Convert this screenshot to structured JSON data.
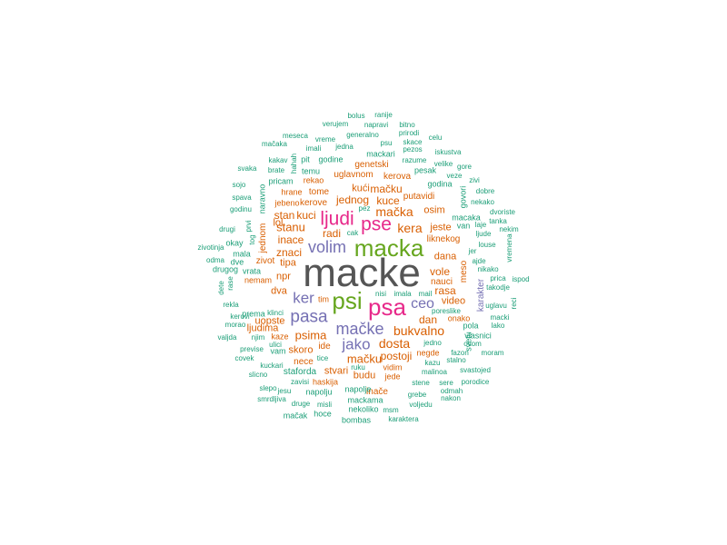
{
  "palette": {
    "a": "#555555",
    "b": "#e7298a",
    "c": "#66a61e",
    "d": "#7570b3",
    "e": "#d95f02",
    "f": "#1b9e77"
  },
  "words": [
    {
      "t": "macke",
      "g": "a"
    },
    {
      "t": "psa",
      "g": "b"
    },
    {
      "t": "psi",
      "g": "c"
    },
    {
      "t": "macka",
      "g": "c"
    },
    {
      "t": "pse",
      "g": "b"
    },
    {
      "t": "ljudi",
      "g": "b"
    },
    {
      "t": "pasa",
      "g": "d"
    },
    {
      "t": "volim",
      "g": "d"
    },
    {
      "t": "mačke",
      "g": "d"
    },
    {
      "t": "jako",
      "g": "d"
    },
    {
      "t": "ker",
      "g": "d"
    },
    {
      "t": "ceo",
      "g": "d"
    },
    {
      "t": "bukvalno",
      "g": "e"
    },
    {
      "t": "dosta",
      "g": "e"
    },
    {
      "t": "mačka",
      "g": "e"
    },
    {
      "t": "kera",
      "g": "e"
    },
    {
      "t": "stanu",
      "g": "e"
    },
    {
      "t": "psima",
      "g": "e"
    },
    {
      "t": "mačku",
      "g": "e"
    },
    {
      "t": "kuce",
      "g": "e"
    },
    {
      "t": "mačku",
      "g": "e"
    },
    {
      "t": "jednog",
      "g": "e"
    },
    {
      "t": "kući",
      "g": "e"
    },
    {
      "t": "stan",
      "g": "e"
    },
    {
      "t": "kuci",
      "g": "e"
    },
    {
      "t": "radi",
      "g": "e"
    },
    {
      "t": "inace",
      "g": "e"
    },
    {
      "t": "znaci",
      "g": "e"
    },
    {
      "t": "vole",
      "g": "e"
    },
    {
      "t": "rasa",
      "g": "e"
    },
    {
      "t": "dana",
      "g": "e"
    },
    {
      "t": "dan",
      "g": "e"
    },
    {
      "t": "postoji",
      "g": "e"
    },
    {
      "t": "macku",
      "g": "e"
    },
    {
      "t": "uopste",
      "g": "e"
    },
    {
      "t": "ljudima",
      "g": "e"
    },
    {
      "t": "stvari",
      "g": "e"
    },
    {
      "t": "skoro",
      "g": "e"
    },
    {
      "t": "budu",
      "g": "e"
    },
    {
      "t": "jeste",
      "g": "e"
    },
    {
      "t": "osim",
      "g": "e"
    },
    {
      "t": "liknekog",
      "g": "e"
    },
    {
      "t": "video",
      "g": "e"
    },
    {
      "t": "nauci",
      "g": "e"
    },
    {
      "t": "lol",
      "g": "e"
    },
    {
      "t": "npr",
      "g": "e"
    },
    {
      "t": "dva",
      "g": "e"
    },
    {
      "t": "tipa",
      "g": "e"
    },
    {
      "t": "zivot",
      "g": "e"
    },
    {
      "t": "tome",
      "g": "e"
    },
    {
      "t": "kerove",
      "g": "e"
    },
    {
      "t": "uglavnom",
      "g": "e"
    },
    {
      "t": "genetski",
      "g": "e"
    },
    {
      "t": "kerova",
      "g": "e"
    },
    {
      "t": "putavidi",
      "g": "e"
    },
    {
      "t": "rekao",
      "g": "e"
    },
    {
      "t": "hrane",
      "g": "e"
    },
    {
      "t": "jebeno",
      "g": "e"
    },
    {
      "t": "nemam",
      "g": "e"
    },
    {
      "t": "ide",
      "g": "e"
    },
    {
      "t": "nece",
      "g": "e"
    },
    {
      "t": "staforda",
      "g": "f"
    },
    {
      "t": "haskija",
      "g": "e"
    },
    {
      "t": "inače",
      "g": "e"
    },
    {
      "t": "jede",
      "g": "e"
    },
    {
      "t": "vidim",
      "g": "e"
    },
    {
      "t": "negde",
      "g": "e"
    },
    {
      "t": "onako",
      "g": "e"
    },
    {
      "t": "pola",
      "g": "f"
    },
    {
      "t": "vlasnici",
      "g": "f"
    },
    {
      "t": "kaze",
      "g": "e"
    },
    {
      "t": "vam",
      "g": "f"
    },
    {
      "t": "ulici",
      "g": "f"
    },
    {
      "t": "tim",
      "g": "e"
    },
    {
      "t": "prema",
      "g": "f"
    },
    {
      "t": "mala",
      "g": "f"
    },
    {
      "t": "okay",
      "g": "f"
    },
    {
      "t": "dve",
      "g": "f"
    },
    {
      "t": "vrata",
      "g": "f"
    },
    {
      "t": "drugog",
      "g": "f"
    },
    {
      "t": "pricam",
      "g": "f"
    },
    {
      "t": "temu",
      "g": "f"
    },
    {
      "t": "pit",
      "g": "f"
    },
    {
      "t": "godine",
      "g": "f"
    },
    {
      "t": "mackari",
      "g": "f"
    },
    {
      "t": "pesak",
      "g": "f"
    },
    {
      "t": "godina",
      "g": "f"
    },
    {
      "t": "razume",
      "g": "f"
    },
    {
      "t": "veze",
      "g": "f"
    },
    {
      "t": "gore",
      "g": "f"
    },
    {
      "t": "zivi",
      "g": "f"
    },
    {
      "t": "dobre",
      "g": "f"
    },
    {
      "t": "nekako",
      "g": "f"
    },
    {
      "t": "dvoriste",
      "g": "f"
    },
    {
      "t": "tanka",
      "g": "f"
    },
    {
      "t": "nekim",
      "g": "f"
    },
    {
      "t": "macaka",
      "g": "f"
    },
    {
      "t": "van",
      "g": "f"
    },
    {
      "t": "laje",
      "g": "f"
    },
    {
      "t": "ljude",
      "g": "f"
    },
    {
      "t": "louse",
      "g": "f"
    },
    {
      "t": "jer",
      "g": "f"
    },
    {
      "t": "ajde",
      "g": "f"
    },
    {
      "t": "nikako",
      "g": "f"
    },
    {
      "t": "prica",
      "g": "f"
    },
    {
      "t": "ispod",
      "g": "f"
    },
    {
      "t": "takodje",
      "g": "f"
    },
    {
      "t": "uglavu",
      "g": "f"
    },
    {
      "t": "macki",
      "g": "f"
    },
    {
      "t": "lako",
      "g": "f"
    },
    {
      "t": "moram",
      "g": "f"
    },
    {
      "t": "stalno",
      "g": "f"
    },
    {
      "t": "svastojed",
      "g": "f"
    },
    {
      "t": "porodice",
      "g": "f"
    },
    {
      "t": "sere",
      "g": "f"
    },
    {
      "t": "odmah",
      "g": "f"
    },
    {
      "t": "nakon",
      "g": "f"
    },
    {
      "t": "voljedu",
      "g": "f"
    },
    {
      "t": "grebe",
      "g": "f"
    },
    {
      "t": "stene",
      "g": "f"
    },
    {
      "t": "malinoa",
      "g": "f"
    },
    {
      "t": "kazu",
      "g": "f"
    },
    {
      "t": "fazon",
      "g": "f"
    },
    {
      "t": "jedno",
      "g": "f"
    },
    {
      "t": "ovom",
      "g": "f"
    },
    {
      "t": "poreslike",
      "g": "f"
    },
    {
      "t": "nisi",
      "g": "f"
    },
    {
      "t": "imala",
      "g": "f"
    },
    {
      "t": "mail",
      "g": "f"
    },
    {
      "t": "ruku",
      "g": "f"
    },
    {
      "t": "napolje",
      "g": "f"
    },
    {
      "t": "mackama",
      "g": "f"
    },
    {
      "t": "nekoliko",
      "g": "f"
    },
    {
      "t": "msm",
      "g": "f"
    },
    {
      "t": "karaktera",
      "g": "f"
    },
    {
      "t": "bombas",
      "g": "f"
    },
    {
      "t": "misli",
      "g": "f"
    },
    {
      "t": "hoce",
      "g": "f"
    },
    {
      "t": "mačak",
      "g": "f"
    },
    {
      "t": "druge",
      "g": "f"
    },
    {
      "t": "zavisi",
      "g": "f"
    },
    {
      "t": "napolju",
      "g": "f"
    },
    {
      "t": "jesu",
      "g": "f"
    },
    {
      "t": "tice",
      "g": "f"
    },
    {
      "t": "smrdljiva",
      "g": "f"
    },
    {
      "t": "slepo",
      "g": "f"
    },
    {
      "t": "slicno",
      "g": "f"
    },
    {
      "t": "kuckari",
      "g": "f"
    },
    {
      "t": "covek",
      "g": "f"
    },
    {
      "t": "previse",
      "g": "f"
    },
    {
      "t": "njim",
      "g": "f"
    },
    {
      "t": "valjda",
      "g": "f"
    },
    {
      "t": "morao",
      "g": "f"
    },
    {
      "t": "kerovi",
      "g": "f"
    },
    {
      "t": "klinci",
      "g": "f"
    },
    {
      "t": "rekla",
      "g": "f"
    },
    {
      "t": "dete",
      "g": "f"
    },
    {
      "t": "rase",
      "g": "f"
    },
    {
      "t": "odma",
      "g": "f"
    },
    {
      "t": "zivotinja",
      "g": "f"
    },
    {
      "t": "drugi",
      "g": "f"
    },
    {
      "t": "godinu",
      "g": "f"
    },
    {
      "t": "spava",
      "g": "f"
    },
    {
      "t": "sojo",
      "g": "f"
    },
    {
      "t": "svaka",
      "g": "f"
    },
    {
      "t": "kakav",
      "g": "f"
    },
    {
      "t": "brate",
      "g": "f"
    },
    {
      "t": "mačaka",
      "g": "f"
    },
    {
      "t": "meseca",
      "g": "f"
    },
    {
      "t": "imali",
      "g": "f"
    },
    {
      "t": "vreme",
      "g": "f"
    },
    {
      "t": "jedna",
      "g": "f"
    },
    {
      "t": "verujem",
      "g": "f"
    },
    {
      "t": "bolus",
      "g": "f"
    },
    {
      "t": "ranije",
      "g": "f"
    },
    {
      "t": "napravi",
      "g": "f"
    },
    {
      "t": "generalno",
      "g": "f"
    },
    {
      "t": "bitno",
      "g": "f"
    },
    {
      "t": "prirodi",
      "g": "f"
    },
    {
      "t": "psu",
      "g": "f"
    },
    {
      "t": "skace",
      "g": "f"
    },
    {
      "t": "pezos",
      "g": "f"
    },
    {
      "t": "celu",
      "g": "f"
    },
    {
      "t": "iskustva",
      "g": "f"
    },
    {
      "t": "velike",
      "g": "f"
    },
    {
      "t": "pez",
      "g": "f"
    },
    {
      "t": "cak",
      "g": "f"
    },
    {
      "t": "govori",
      "g": "f"
    },
    {
      "t": "vremena",
      "g": "f"
    },
    {
      "t": "karakter",
      "g": "d"
    },
    {
      "t": "svetu",
      "g": "f"
    },
    {
      "t": "meso",
      "g": "e"
    },
    {
      "t": "jednom",
      "g": "e"
    },
    {
      "t": "naravno",
      "g": "f"
    },
    {
      "t": "prvi",
      "g": "f"
    },
    {
      "t": "tog",
      "g": "f"
    },
    {
      "t": "hahah",
      "g": "f"
    },
    {
      "t": "reci",
      "g": "f"
    }
  ]
}
